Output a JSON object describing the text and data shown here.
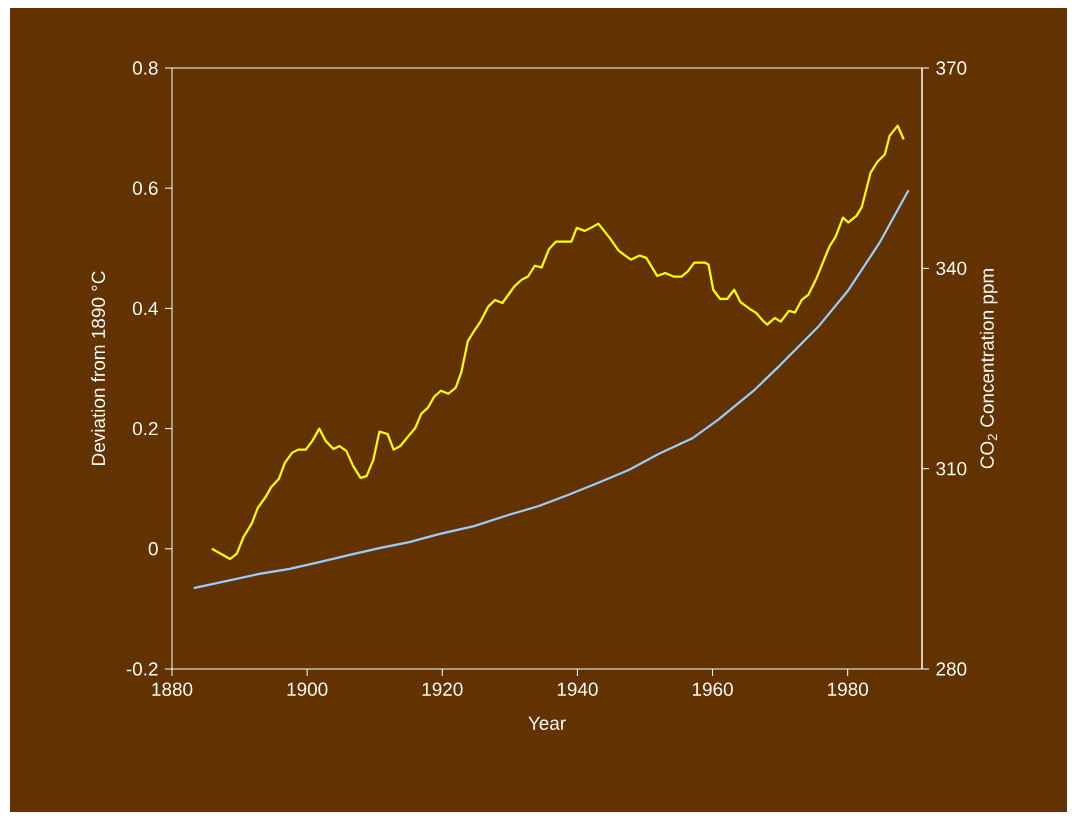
{
  "chart_data": {
    "type": "line",
    "xlabel": "Year",
    "ylabel": "Deviation from 1890 °C",
    "y2label": "CO$_{2}$ Concentration ppm",
    "xlim": [
      1880,
      1991
    ],
    "xticks": [
      1880,
      1900,
      1920,
      1940,
      1960,
      1980
    ],
    "ylim": [
      -0.2,
      0.8
    ],
    "yticks": [
      -0.2,
      0,
      0.2,
      0.4,
      0.6,
      0.8
    ],
    "y2lim": [
      280,
      370
    ],
    "y2ticks": [
      280,
      310,
      340,
      370
    ],
    "series": [
      {
        "color": "#ffff00",
        "x": [
          1885.9,
          1888.6,
          1889.6,
          1890.6,
          1891.8,
          1892.7,
          1893.9,
          1894.7,
          1895.8,
          1896.7,
          1897.8,
          1898.7,
          1899.8,
          1900.8,
          1901.8,
          1902.7,
          1903.9,
          1904.8,
          1905.8,
          1906.8,
          1907.9,
          1908.8,
          1909.8,
          1910.7,
          1911.9,
          1912.8,
          1913.8,
          1914.8,
          1916.0,
          1916.9,
          1917.9,
          1918.8,
          1919.8,
          1920.9,
          1922.0,
          1922.8,
          1923.8,
          1924.8,
          1925.7,
          1926.8,
          1927.8,
          1928.9,
          1929.8,
          1930.7,
          1931.8,
          1932.7,
          1933.7,
          1934.7,
          1935.8,
          1936.8,
          1939.1,
          1939.9,
          1941.1,
          1942.0,
          1943.1,
          1944.8,
          1946.1,
          1947.9,
          1949.2,
          1950.2,
          1951.8,
          1953.0,
          1954.2,
          1955.4,
          1956.3,
          1957.3,
          1958.9,
          1959.4,
          1960.1,
          1961.1,
          1962.2,
          1963.2,
          1964.1,
          1965.5,
          1966.4,
          1967.5,
          1968.1,
          1969.2,
          1970.1,
          1971.3,
          1972.2,
          1973.2,
          1974.2,
          1975.3,
          1977.3,
          1978.2,
          1979.3,
          1980.1,
          1981.3,
          1982.1,
          1983.4,
          1984.4,
          1985.5,
          1986.2,
          1987.4,
          1988.3
        ],
        "values": [
          0.0,
          -0.017,
          -0.008,
          0.02,
          0.042,
          0.068,
          0.087,
          0.103,
          0.116,
          0.143,
          0.16,
          0.165,
          0.165,
          0.18,
          0.2,
          0.18,
          0.166,
          0.171,
          0.163,
          0.138,
          0.118,
          0.121,
          0.148,
          0.195,
          0.191,
          0.165,
          0.171,
          0.185,
          0.201,
          0.225,
          0.235,
          0.253,
          0.263,
          0.258,
          0.268,
          0.293,
          0.346,
          0.364,
          0.379,
          0.403,
          0.414,
          0.409,
          0.423,
          0.437,
          0.448,
          0.453,
          0.471,
          0.468,
          0.499,
          0.511,
          0.511,
          0.534,
          0.529,
          0.534,
          0.541,
          0.517,
          0.496,
          0.481,
          0.488,
          0.484,
          0.454,
          0.459,
          0.453,
          0.453,
          0.461,
          0.476,
          0.476,
          0.473,
          0.431,
          0.416,
          0.416,
          0.431,
          0.411,
          0.399,
          0.393,
          0.379,
          0.373,
          0.384,
          0.378,
          0.396,
          0.393,
          0.414,
          0.423,
          0.448,
          0.503,
          0.519,
          0.551,
          0.543,
          0.554,
          0.569,
          0.626,
          0.644,
          0.656,
          0.687,
          0.704,
          0.681
        ]
      },
      {
        "color": "#99ccff",
        "axis": "y2",
        "x": [
          1883.2,
          1892.7,
          1897.4,
          1901.8,
          1906.3,
          1910.7,
          1915.1,
          1919.5,
          1924.7,
          1929.9,
          1934.3,
          1938.7,
          1943.1,
          1947.6,
          1952.0,
          1957.1,
          1960.8,
          1966.0,
          1969.7,
          1975.6,
          1980.0,
          1984.7,
          1989.0
        ],
        "values": [
          292.1,
          294.2,
          295.0,
          296.0,
          297.1,
          298.1,
          299.0,
          300.2,
          301.4,
          303.1,
          304.4,
          306.1,
          307.9,
          309.8,
          312.2,
          314.6,
          317.3,
          321.6,
          325.2,
          331.2,
          336.6,
          343.8,
          351.7
        ]
      }
    ]
  }
}
